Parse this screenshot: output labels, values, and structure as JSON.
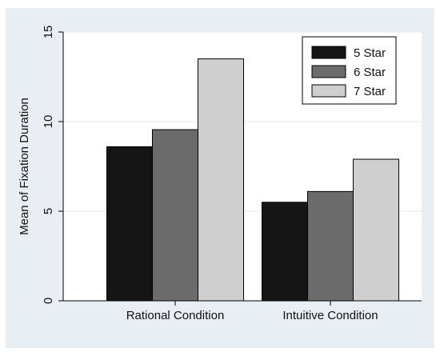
{
  "chart_data": {
    "type": "bar",
    "title": "",
    "xlabel": "",
    "ylabel": "Mean of Fixation Duration",
    "ylim": [
      0,
      15
    ],
    "yticks": [
      0,
      5,
      10,
      15
    ],
    "grid": true,
    "legend_position": "top-right",
    "categories": [
      "Rational Condition",
      "Intuitive Condition"
    ],
    "series": [
      {
        "name": "5 Star",
        "color": "#151515",
        "values": [
          8.6,
          5.5
        ]
      },
      {
        "name": "6 Star",
        "color": "#6b6b6b",
        "values": [
          9.55,
          6.1
        ]
      },
      {
        "name": "7 Star",
        "color": "#cfcfcf",
        "values": [
          13.5,
          7.9
        ]
      }
    ],
    "colors": {
      "background": "#e8eef2",
      "plot_background": "#ffffff",
      "grid": "#e3eaee",
      "axis": "#000000"
    }
  }
}
